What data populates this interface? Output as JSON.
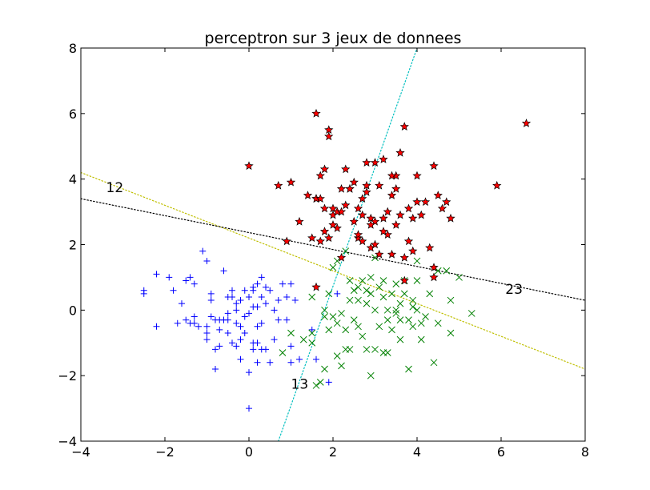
{
  "chart_data": {
    "type": "scatter",
    "title": "perceptron sur 3 jeux de donnees",
    "xlabel": "",
    "ylabel": "",
    "xlim": [
      -4,
      8
    ],
    "ylim": [
      -4,
      8
    ],
    "xticks": [
      -4,
      -2,
      0,
      2,
      4,
      6,
      8
    ],
    "yticks": [
      -4,
      -2,
      0,
      2,
      4,
      6,
      8
    ],
    "xtick_labels": [
      "−4",
      "−2",
      "0",
      "2",
      "4",
      "6",
      "8"
    ],
    "ytick_labels": [
      "−4",
      "−2",
      "0",
      "2",
      "4",
      "6",
      "8"
    ],
    "grid": false,
    "colors": {
      "class_blue": "#0000ff",
      "class_green": "#008000",
      "class_red": "#ff0000",
      "line_12": "#bfbf00",
      "line_13": "#00bfbf",
      "line_23": "#000000"
    },
    "series": [
      {
        "marker": "plus",
        "color": "#0000ff",
        "x": [
          -2.5,
          -2.5,
          -2.2,
          -2.2,
          -1.9,
          -1.8,
          -1.7,
          -1.6,
          -1.5,
          -1.5,
          -1.4,
          -1.4,
          -1.3,
          -1.3,
          -1.2,
          -1.1,
          -1.0,
          -1.0,
          -1.0,
          -1.0,
          -0.9,
          -0.9,
          -0.8,
          -0.8,
          -0.8,
          -0.7,
          -0.7,
          -0.7,
          -0.6,
          -0.6,
          -0.5,
          -0.5,
          -0.5,
          -0.4,
          -0.4,
          -0.3,
          -0.3,
          -0.3,
          -0.3,
          -0.2,
          -0.2,
          -0.2,
          -0.1,
          -0.1,
          -0.1,
          0.0,
          0.0,
          0.0,
          0.1,
          0.1,
          0.1,
          0.1,
          0.2,
          0.2,
          0.2,
          0.2,
          0.3,
          0.3,
          0.3,
          0.4,
          0.4,
          0.4,
          0.5,
          0.5,
          0.6,
          0.6,
          0.7,
          0.8,
          0.9,
          0.9,
          1.0,
          1.0,
          1.1,
          1.2,
          1.5,
          1.6,
          1.9,
          2.1,
          -0.6,
          -0.9,
          -1.3,
          0.0,
          0.3,
          -0.2,
          1.0,
          0.7,
          -0.4,
          0.2,
          -0.5,
          0.1
        ],
        "y": [
          0.5,
          0.6,
          -0.5,
          1.1,
          1.0,
          0.6,
          -0.4,
          0.2,
          -0.3,
          0.9,
          -0.4,
          1.0,
          -0.2,
          -0.4,
          -0.5,
          1.8,
          1.5,
          -0.5,
          -0.7,
          -0.9,
          -0.2,
          0.3,
          -1.8,
          -1.2,
          -0.3,
          -0.3,
          -0.6,
          -1.1,
          -0.3,
          1.2,
          -0.7,
          0.4,
          -0.3,
          -1.0,
          0.4,
          0.2,
          0.0,
          -0.4,
          -1.1,
          -0.5,
          -0.9,
          -1.5,
          -0.2,
          0.6,
          -0.7,
          -1.9,
          -3.0,
          0.4,
          0.6,
          -1.0,
          -1.2,
          0.7,
          -0.5,
          -1.0,
          0.8,
          -1.6,
          1.0,
          -1.2,
          0.4,
          -1.2,
          0.2,
          0.7,
          -1.6,
          0.6,
          -0.9,
          0.0,
          0.3,
          0.8,
          0.4,
          -0.3,
          0.8,
          -1.6,
          0.3,
          -1.5,
          -0.6,
          -1.5,
          -2.2,
          0.5,
          -0.3,
          0.5,
          0.8,
          -0.1,
          -0.4,
          0.3,
          -1.1,
          -0.3,
          0.6,
          0.1,
          -0.1,
          0.1
        ]
      },
      {
        "marker": "cross",
        "color": "#008000",
        "x": [
          0.8,
          1.0,
          1.5,
          1.6,
          1.7,
          1.8,
          1.8,
          1.9,
          1.9,
          2.0,
          2.1,
          2.1,
          2.2,
          2.2,
          2.3,
          2.3,
          2.4,
          2.4,
          2.5,
          2.5,
          2.6,
          2.6,
          2.7,
          2.7,
          2.8,
          2.8,
          2.9,
          2.9,
          3.0,
          3.0,
          3.1,
          3.1,
          3.2,
          3.2,
          3.3,
          3.3,
          3.4,
          3.4,
          3.5,
          3.5,
          3.6,
          3.6,
          3.7,
          3.7,
          3.8,
          3.8,
          3.9,
          3.9,
          4.0,
          4.0,
          4.1,
          4.1,
          4.2,
          4.3,
          4.4,
          4.5,
          4.7,
          4.8,
          5.0,
          5.3,
          1.5,
          2.0,
          2.6,
          3.3,
          3.9,
          4.8,
          2.9,
          3.0,
          1.8,
          1.5,
          2.4,
          3.2,
          4.5,
          2.3,
          1.3,
          3.6,
          4.0,
          2.8,
          3.5,
          2.1
        ],
        "y": [
          -1.3,
          -0.7,
          -1.0,
          -2.3,
          -2.2,
          -1.8,
          0.0,
          -0.6,
          0.5,
          1.3,
          -1.4,
          1.5,
          -1.7,
          -0.1,
          -0.6,
          1.8,
          0.9,
          -1.2,
          -0.3,
          0.6,
          0.7,
          -0.5,
          0.9,
          -0.8,
          0.6,
          -1.2,
          1.0,
          -2.0,
          1.6,
          0.0,
          -0.5,
          0.7,
          -1.3,
          0.4,
          0.0,
          -1.3,
          0.5,
          -0.6,
          0.8,
          0.0,
          -0.3,
          0.2,
          0.5,
          0.9,
          -0.3,
          -1.8,
          0.1,
          -0.5,
          1.5,
          0.0,
          -0.4,
          -0.9,
          -0.2,
          0.5,
          -1.6,
          -0.4,
          1.2,
          0.3,
          1.0,
          -0.1,
          0.4,
          -0.2,
          0.3,
          -0.3,
          0.3,
          -0.7,
          0.5,
          -1.2,
          -0.2,
          -0.7,
          0.3,
          0.9,
          1.2,
          -1.2,
          -0.9,
          -0.9,
          0.9,
          0.2,
          -0.1,
          -0.4
        ]
      },
      {
        "marker": "star",
        "color": "#ff0000",
        "x": [
          0.0,
          0.7,
          0.9,
          1.0,
          1.2,
          1.4,
          1.5,
          1.6,
          1.6,
          1.6,
          1.7,
          1.7,
          1.8,
          1.8,
          1.9,
          1.9,
          2.0,
          2.0,
          2.1,
          2.1,
          2.2,
          2.2,
          2.3,
          2.3,
          2.4,
          2.5,
          2.5,
          2.6,
          2.6,
          2.7,
          2.7,
          2.8,
          2.8,
          2.9,
          2.9,
          3.0,
          3.0,
          3.1,
          3.1,
          3.2,
          3.2,
          3.3,
          3.3,
          3.4,
          3.4,
          3.5,
          3.5,
          3.6,
          3.6,
          3.7,
          3.7,
          3.8,
          3.8,
          3.9,
          3.9,
          4.0,
          4.1,
          4.2,
          4.3,
          4.4,
          4.4,
          4.5,
          4.6,
          4.7,
          4.8,
          5.9,
          6.6,
          1.6,
          1.8,
          3.7,
          2.2,
          2.8,
          3.4,
          2.6,
          3.0,
          1.9,
          2.4,
          3.2,
          2.0,
          4.0,
          3.5,
          2.7,
          4.4,
          2.9,
          1.7
        ],
        "y": [
          4.4,
          3.8,
          2.1,
          3.9,
          2.7,
          3.5,
          2.2,
          3.4,
          6.0,
          0.7,
          4.1,
          2.1,
          4.3,
          2.4,
          5.5,
          5.3,
          3.1,
          2.9,
          3.0,
          2.5,
          3.7,
          1.6,
          4.3,
          3.2,
          3.7,
          3.9,
          2.7,
          2.2,
          3.1,
          3.4,
          2.1,
          3.8,
          4.5,
          2.8,
          1.9,
          4.5,
          2.7,
          3.8,
          1.7,
          4.6,
          2.8,
          3.0,
          2.3,
          1.7,
          3.5,
          4.1,
          3.7,
          4.8,
          2.9,
          1.6,
          5.6,
          3.1,
          2.1,
          2.8,
          1.8,
          4.1,
          2.9,
          3.3,
          1.9,
          1.3,
          4.4,
          3.5,
          3.1,
          3.3,
          2.8,
          3.8,
          5.7,
          3.4,
          3.1,
          0.9,
          3.0,
          3.6,
          4.1,
          2.3,
          2.0,
          2.2,
          3.7,
          2.4,
          2.6,
          3.3,
          2.6,
          2.9,
          1.0,
          2.6,
          3.4
        ]
      }
    ],
    "lines": [
      {
        "label": "12",
        "color": "#bfbf00",
        "style": "dotted",
        "x": [
          -4,
          8
        ],
        "y": [
          4.2,
          -1.8
        ]
      },
      {
        "label": "23",
        "color": "#000000",
        "style": "dotted",
        "x": [
          -4,
          8
        ],
        "y": [
          3.4,
          0.3
        ]
      },
      {
        "label": "13",
        "color": "#00bfbf",
        "style": "dotted",
        "x": [
          0.7,
          4.0
        ],
        "y": [
          -4.0,
          8.0
        ]
      }
    ],
    "annotations": [
      {
        "text": "12",
        "x": -3.4,
        "y": 3.6
      },
      {
        "text": "23",
        "x": 6.1,
        "y": 0.5
      },
      {
        "text": "13",
        "x": 1.0,
        "y": -2.4
      }
    ]
  }
}
